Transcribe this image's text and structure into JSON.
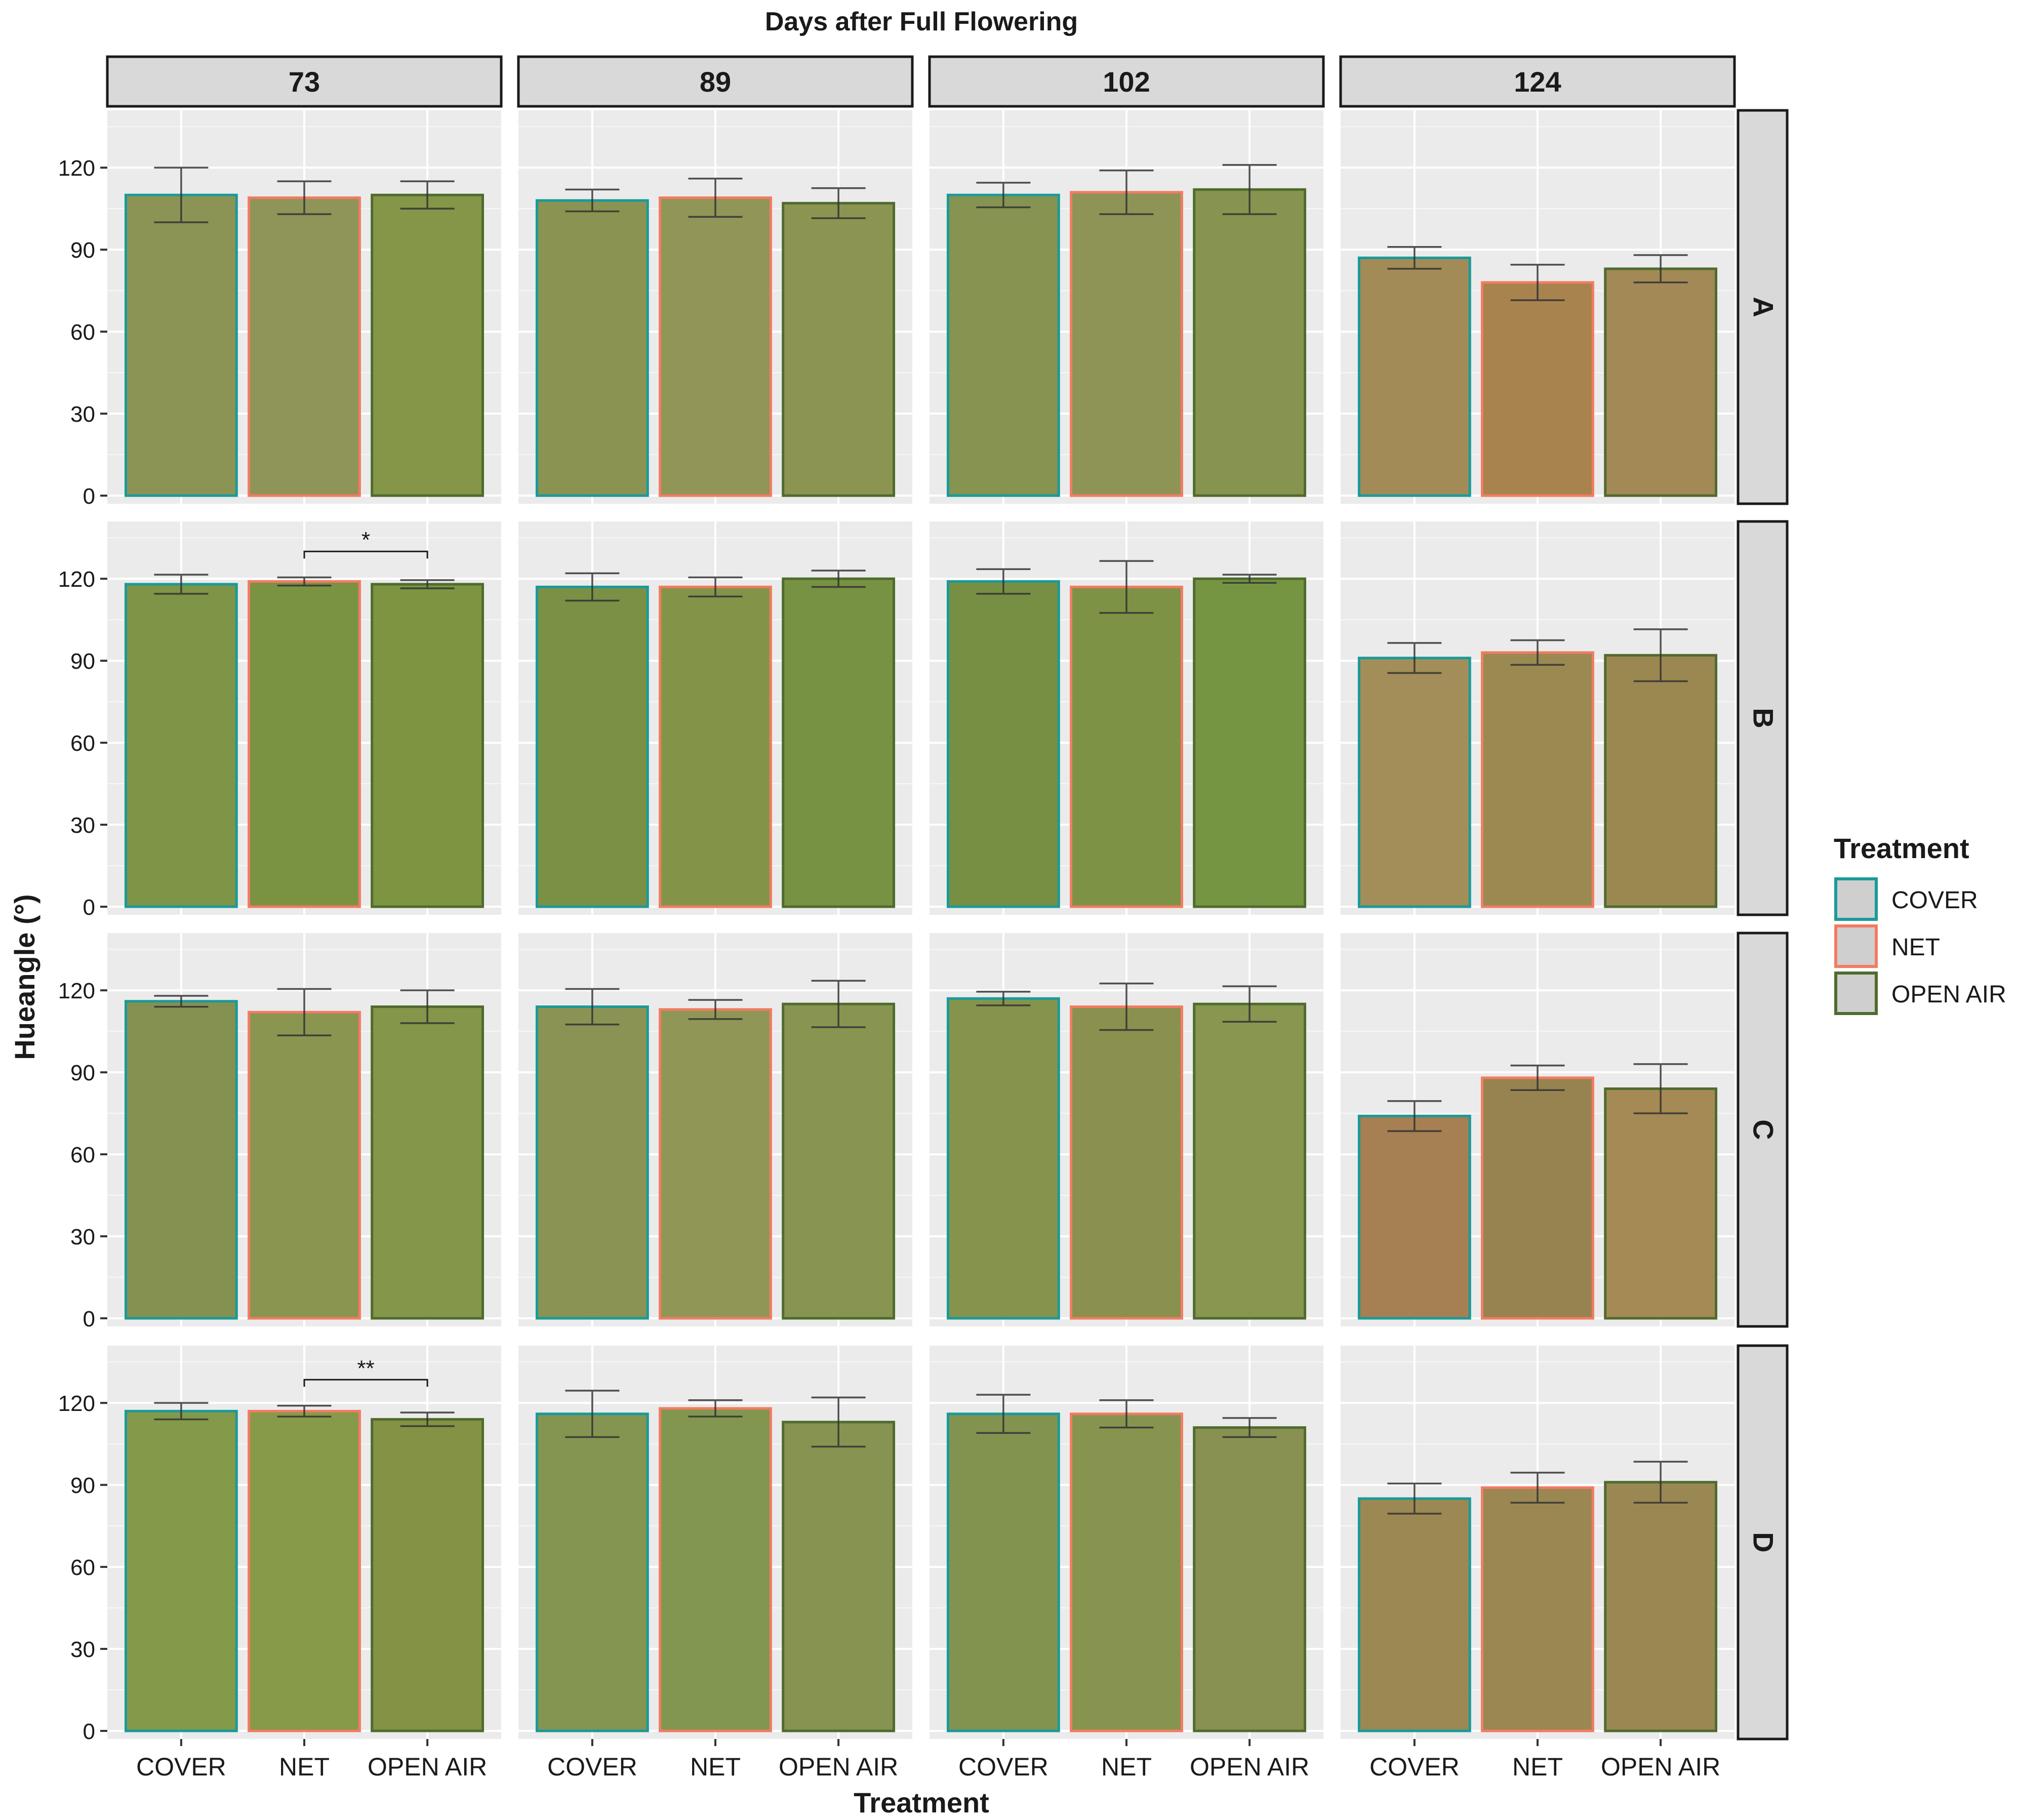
{
  "chart_data": {
    "type": "bar",
    "title": "Days after Full Flowering",
    "xlabel": "Treatment",
    "ylabel": "Hueangle (°)",
    "ylim": [
      0,
      138
    ],
    "yticks": [
      0,
      30,
      60,
      90,
      120
    ],
    "grid": true,
    "categories": [
      "COVER",
      "NET",
      "OPEN AIR"
    ],
    "col_facets": [
      "73",
      "89",
      "102",
      "124"
    ],
    "row_facets": [
      "A",
      "B",
      "C",
      "D"
    ],
    "legend": {
      "title": "Treatment",
      "position": "right",
      "entries": [
        {
          "label": "COVER",
          "border": "#1a9a9a"
        },
        {
          "label": "NET",
          "border": "#f37b62"
        },
        {
          "label": "OPEN AIR",
          "border": "#4f6b2e"
        }
      ]
    },
    "panels": [
      {
        "row": "A",
        "col": "73",
        "values": [
          110,
          109,
          110
        ],
        "errors": [
          10,
          6,
          5
        ],
        "fills": [
          "#8c9455",
          "#8f9558",
          "#859648"
        ]
      },
      {
        "row": "A",
        "col": "89",
        "values": [
          108,
          109,
          107
        ],
        "errors": [
          4,
          7,
          5.5
        ],
        "fills": [
          "#8a9352",
          "#919558",
          "#8b9551"
        ]
      },
      {
        "row": "A",
        "col": "102",
        "values": [
          110,
          111,
          112
        ],
        "errors": [
          4.5,
          8,
          9
        ],
        "fills": [
          "#879350",
          "#8e9456",
          "#879450"
        ]
      },
      {
        "row": "A",
        "col": "124",
        "values": [
          87,
          78,
          83
        ],
        "errors": [
          4,
          6.5,
          5
        ],
        "fills": [
          "#a38b58",
          "#a8834e",
          "#a38955"
        ]
      },
      {
        "row": "B",
        "col": "73",
        "values": [
          118,
          119,
          118
        ],
        "errors": [
          3.5,
          1.5,
          1.5
        ],
        "fills": [
          "#7e9446",
          "#799342",
          "#7d9441"
        ]
      },
      {
        "row": "B",
        "col": "89",
        "values": [
          117,
          117,
          120
        ],
        "errors": [
          5,
          3.5,
          3
        ],
        "fills": [
          "#7a9045",
          "#839449",
          "#779242"
        ]
      },
      {
        "row": "B",
        "col": "102",
        "values": [
          119,
          117,
          120
        ],
        "errors": [
          4.5,
          9.5,
          1.5
        ],
        "fills": [
          "#778f43",
          "#7d9245",
          "#759543"
        ]
      },
      {
        "row": "B",
        "col": "124",
        "values": [
          91,
          93,
          92
        ],
        "errors": [
          5.5,
          4.5,
          9.5
        ],
        "fills": [
          "#a38d58",
          "#9a8a52",
          "#9b8851"
        ]
      },
      {
        "row": "C",
        "col": "73",
        "values": [
          116,
          112,
          114
        ],
        "errors": [
          2,
          8.5,
          6
        ],
        "fills": [
          "#849151",
          "#8a9550",
          "#849649"
        ]
      },
      {
        "row": "C",
        "col": "89",
        "values": [
          114,
          113,
          115
        ],
        "errors": [
          6.5,
          3.5,
          8.5
        ],
        "fills": [
          "#8a9353",
          "#909756",
          "#879551"
        ]
      },
      {
        "row": "C",
        "col": "102",
        "values": [
          117,
          114,
          115
        ],
        "errors": [
          2.5,
          8.5,
          6.5
        ],
        "fills": [
          "#85934d",
          "#8a904e",
          "#889650"
        ]
      },
      {
        "row": "C",
        "col": "124",
        "values": [
          74,
          88,
          84
        ],
        "errors": [
          5.5,
          4.5,
          9
        ],
        "fills": [
          "#a67f52",
          "#978350",
          "#a58a55"
        ]
      },
      {
        "row": "D",
        "col": "73",
        "values": [
          117,
          117,
          114
        ],
        "errors": [
          3,
          2,
          2.5
        ],
        "fills": [
          "#839a4a",
          "#879a49",
          "#849245"
        ]
      },
      {
        "row": "D",
        "col": "89",
        "values": [
          116,
          118,
          113
        ],
        "errors": [
          8.5,
          3,
          9
        ],
        "fills": [
          "#839550",
          "#829650",
          "#879350"
        ]
      },
      {
        "row": "D",
        "col": "102",
        "values": [
          116,
          116,
          111
        ],
        "errors": [
          7,
          5,
          3.5
        ],
        "fills": [
          "#829350",
          "#86944f",
          "#889151"
        ]
      },
      {
        "row": "D",
        "col": "124",
        "values": [
          85,
          89,
          91
        ],
        "errors": [
          5.5,
          5.5,
          7.5
        ],
        "fills": [
          "#9c8853",
          "#9b8752",
          "#9a8852"
        ]
      }
    ],
    "annotations": [
      {
        "row": "B",
        "col": "73",
        "from": "NET",
        "to": "OPEN AIR",
        "label": "*"
      },
      {
        "row": "D",
        "col": "73",
        "from": "NET",
        "to": "OPEN AIR",
        "label": "**"
      }
    ]
  }
}
